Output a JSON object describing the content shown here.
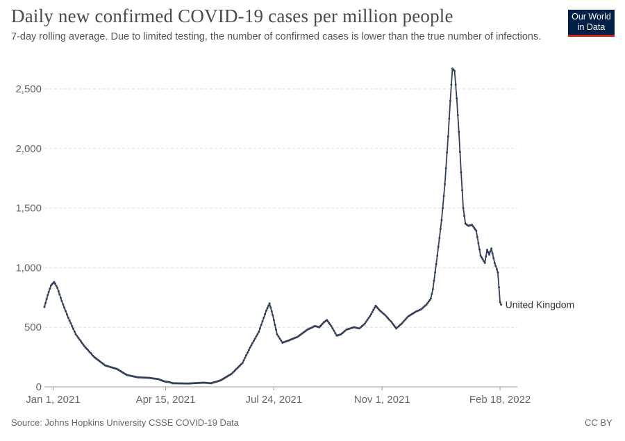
{
  "header": {
    "title": "Daily new confirmed COVID-19 cases per million people",
    "subtitle": "7-day rolling average. Due to limited testing, the number of confirmed cases is lower than the true number of infections."
  },
  "logo": {
    "line1": "Our World",
    "line2": "in Data"
  },
  "footer": {
    "source": "Source: Johns Hopkins University CSSE COVID-19 Data",
    "license": "CC BY"
  },
  "colors": {
    "series": "#34405a",
    "grid": "#dddddd",
    "axis": "#999999",
    "logo_bg": "#002147",
    "logo_accent": "#ce261e"
  },
  "chart_data": {
    "type": "line",
    "title": "Daily new confirmed COVID-19 cases per million people",
    "xlabel": "",
    "ylabel": "",
    "ylim": [
      0,
      2500
    ],
    "y_ticks": [
      0,
      500,
      1000,
      1500,
      2000,
      2500
    ],
    "y_tick_labels": [
      "0",
      "500",
      "1,000",
      "1,500",
      "2,000",
      "2,500"
    ],
    "x_range": [
      "2020-12-24",
      "2022-03-06"
    ],
    "x_ticks": [
      "2021-01-01",
      "2021-04-15",
      "2021-07-24",
      "2021-11-01",
      "2022-02-18"
    ],
    "x_tick_labels": [
      "Jan 1, 2021",
      "Apr 15, 2021",
      "Jul 24, 2021",
      "Nov 1, 2021",
      "Feb 18, 2022"
    ],
    "grid": true,
    "markers": true,
    "series": [
      {
        "name": "United Kingdom",
        "points": [
          [
            "2020-12-24",
            670
          ],
          [
            "2020-12-27",
            770
          ],
          [
            "2020-12-30",
            850
          ],
          [
            "2021-01-02",
            880
          ],
          [
            "2021-01-05",
            830
          ],
          [
            "2021-01-09",
            720
          ],
          [
            "2021-01-15",
            580
          ],
          [
            "2021-01-22",
            440
          ],
          [
            "2021-01-30",
            340
          ],
          [
            "2021-02-08",
            250
          ],
          [
            "2021-02-18",
            180
          ],
          [
            "2021-03-01",
            150
          ],
          [
            "2021-03-10",
            100
          ],
          [
            "2021-03-20",
            80
          ],
          [
            "2021-03-31",
            75
          ],
          [
            "2021-04-08",
            65
          ],
          [
            "2021-04-14",
            45
          ],
          [
            "2021-04-18",
            40
          ],
          [
            "2021-04-22",
            30
          ],
          [
            "2021-05-06",
            28
          ],
          [
            "2021-05-20",
            35
          ],
          [
            "2021-05-27",
            30
          ],
          [
            "2021-06-05",
            55
          ],
          [
            "2021-06-15",
            110
          ],
          [
            "2021-06-25",
            200
          ],
          [
            "2021-07-02",
            330
          ],
          [
            "2021-07-10",
            460
          ],
          [
            "2021-07-17",
            640
          ],
          [
            "2021-07-20",
            700
          ],
          [
            "2021-07-23",
            600
          ],
          [
            "2021-07-27",
            440
          ],
          [
            "2021-08-01",
            370
          ],
          [
            "2021-08-07",
            390
          ],
          [
            "2021-08-15",
            420
          ],
          [
            "2021-08-24",
            480
          ],
          [
            "2021-08-31",
            510
          ],
          [
            "2021-09-04",
            500
          ],
          [
            "2021-09-08",
            540
          ],
          [
            "2021-09-11",
            560
          ],
          [
            "2021-09-15",
            510
          ],
          [
            "2021-09-20",
            430
          ],
          [
            "2021-09-24",
            440
          ],
          [
            "2021-09-29",
            480
          ],
          [
            "2021-10-06",
            500
          ],
          [
            "2021-10-11",
            490
          ],
          [
            "2021-10-16",
            530
          ],
          [
            "2021-10-22",
            610
          ],
          [
            "2021-10-26",
            680
          ],
          [
            "2021-10-30",
            640
          ],
          [
            "2021-11-04",
            600
          ],
          [
            "2021-11-10",
            540
          ],
          [
            "2021-11-14",
            490
          ],
          [
            "2021-11-19",
            530
          ],
          [
            "2021-11-25",
            590
          ],
          [
            "2021-12-02",
            630
          ],
          [
            "2021-12-07",
            650
          ],
          [
            "2021-12-12",
            690
          ],
          [
            "2021-12-16",
            740
          ],
          [
            "2021-12-18",
            820
          ],
          [
            "2021-12-22",
            1100
          ],
          [
            "2021-12-26",
            1400
          ],
          [
            "2021-12-29",
            1700
          ],
          [
            "2022-01-01",
            2100
          ],
          [
            "2022-01-03",
            2400
          ],
          [
            "2022-01-05",
            2670
          ],
          [
            "2022-01-07",
            2650
          ],
          [
            "2022-01-09",
            2420
          ],
          [
            "2022-01-11",
            2140
          ],
          [
            "2022-01-13",
            1800
          ],
          [
            "2022-01-15",
            1500
          ],
          [
            "2022-01-17",
            1370
          ],
          [
            "2022-01-20",
            1350
          ],
          [
            "2022-01-23",
            1360
          ],
          [
            "2022-01-27",
            1310
          ],
          [
            "2022-01-31",
            1100
          ],
          [
            "2022-02-04",
            1040
          ],
          [
            "2022-02-06",
            1150
          ],
          [
            "2022-02-08",
            1110
          ],
          [
            "2022-02-10",
            1160
          ],
          [
            "2022-02-13",
            1040
          ],
          [
            "2022-02-16",
            960
          ],
          [
            "2022-02-18",
            710
          ],
          [
            "2022-02-19",
            690
          ]
        ]
      }
    ],
    "end_label": "United Kingdom"
  }
}
